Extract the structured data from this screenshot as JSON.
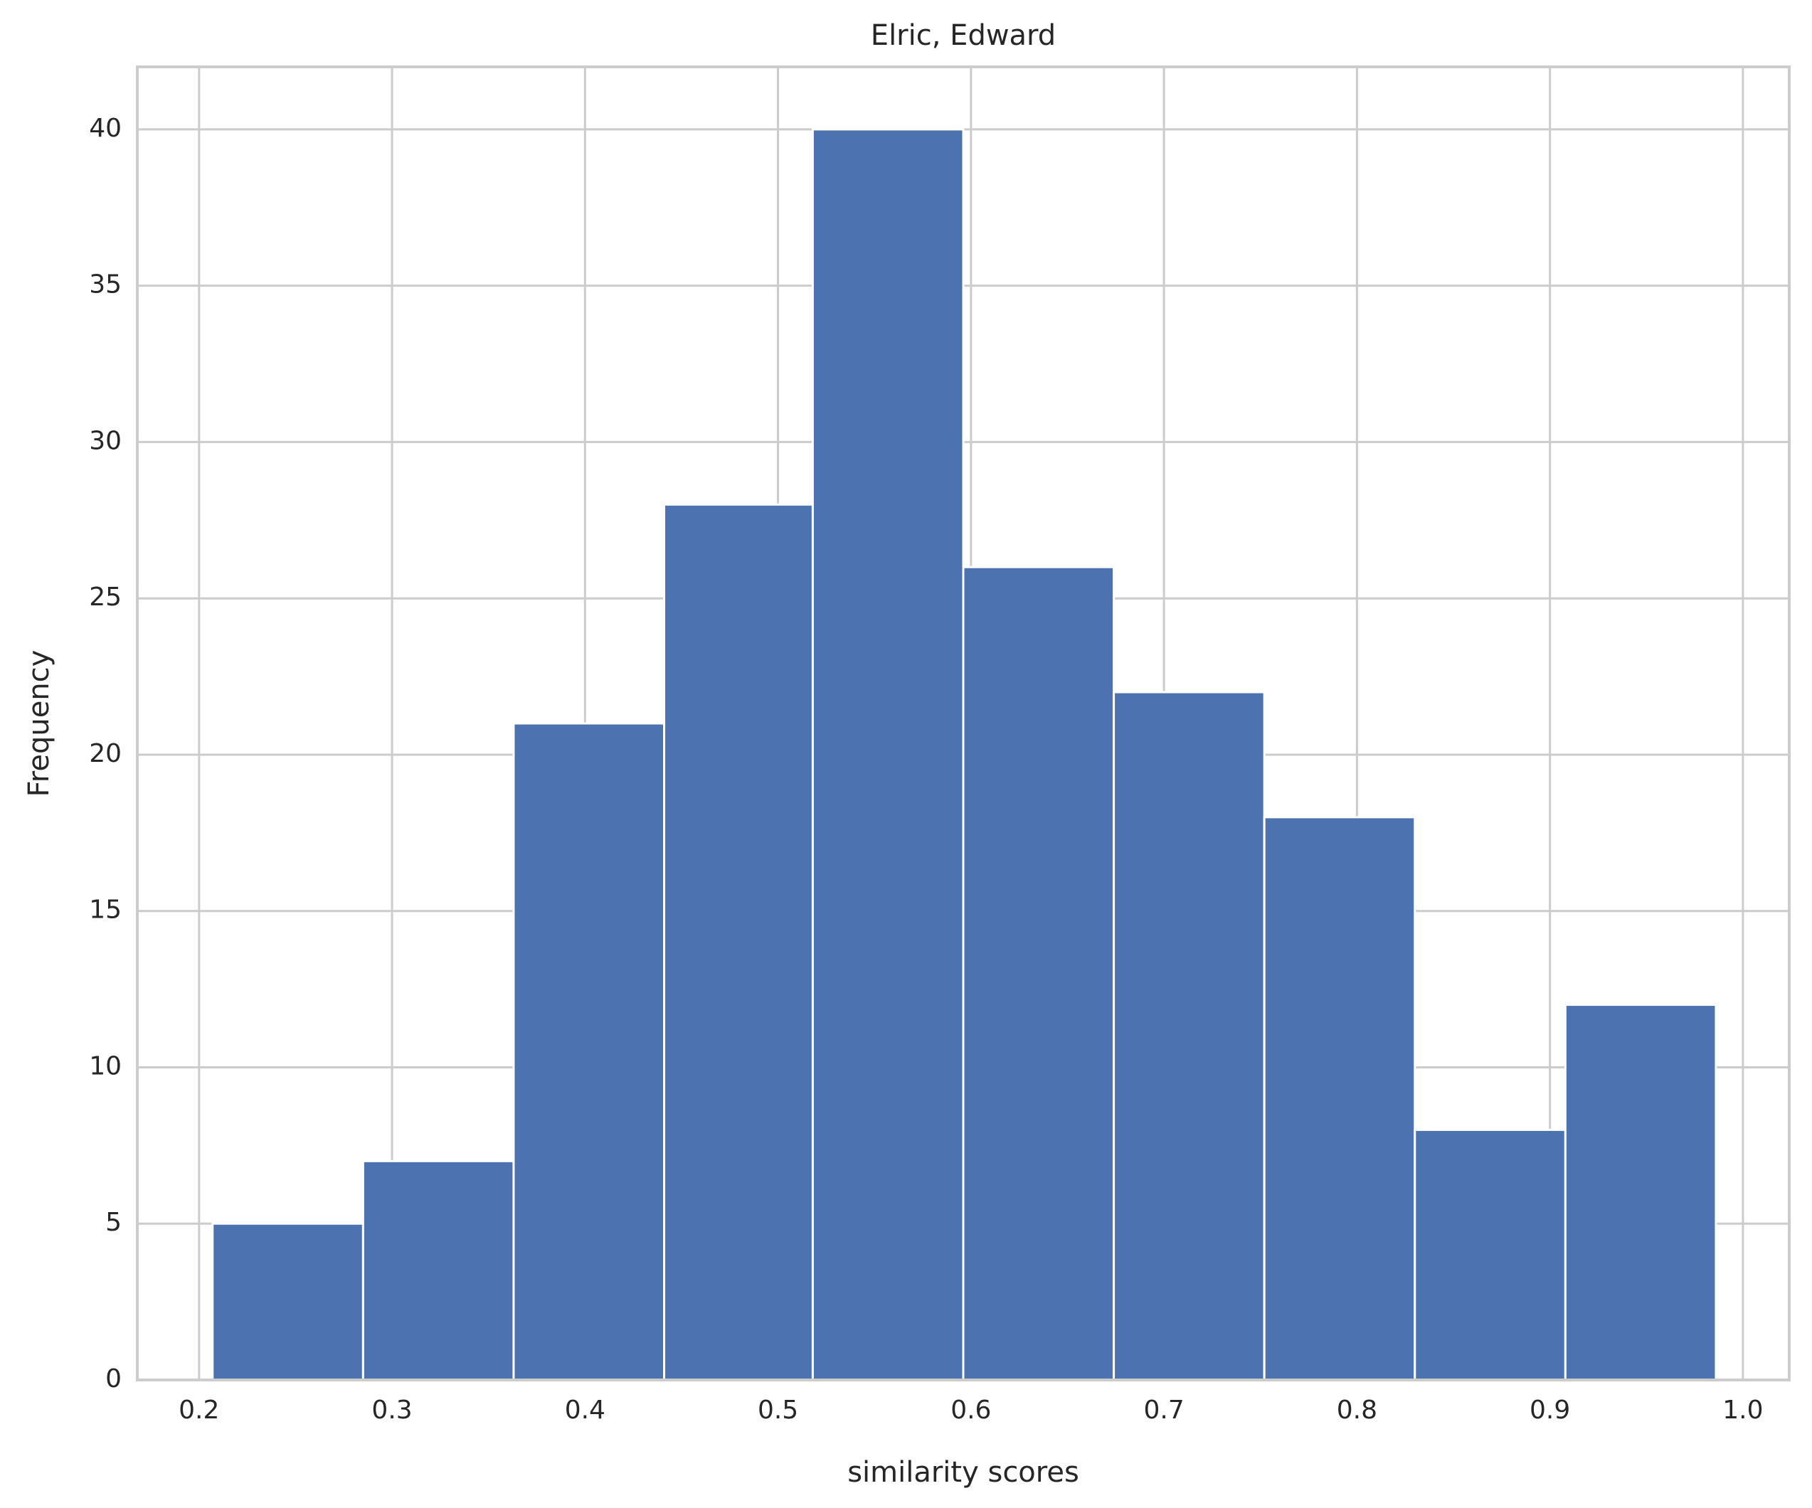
{
  "chart_data": {
    "type": "histogram",
    "title": "Elric, Edward",
    "xlabel": "similarity scores",
    "ylabel": "Frequency",
    "bins": [
      0.207,
      0.285,
      0.363,
      0.441,
      0.518,
      0.596,
      0.674,
      0.752,
      0.83,
      0.908,
      0.986
    ],
    "values": [
      5,
      7,
      21,
      28,
      40,
      26,
      22,
      18,
      8,
      12
    ],
    "color": "#4c72b0",
    "xlim": [
      0.168,
      1.024
    ],
    "xticks": [
      0.2,
      0.3,
      0.4,
      0.5,
      0.6,
      0.7,
      0.8,
      0.9,
      {
        "value": 1,
        "label": "1.0"
      }
    ],
    "ylim": [
      0,
      42
    ],
    "yticks": [
      0,
      5,
      10,
      15,
      20,
      25,
      30,
      35,
      40
    ],
    "grid": true
  }
}
